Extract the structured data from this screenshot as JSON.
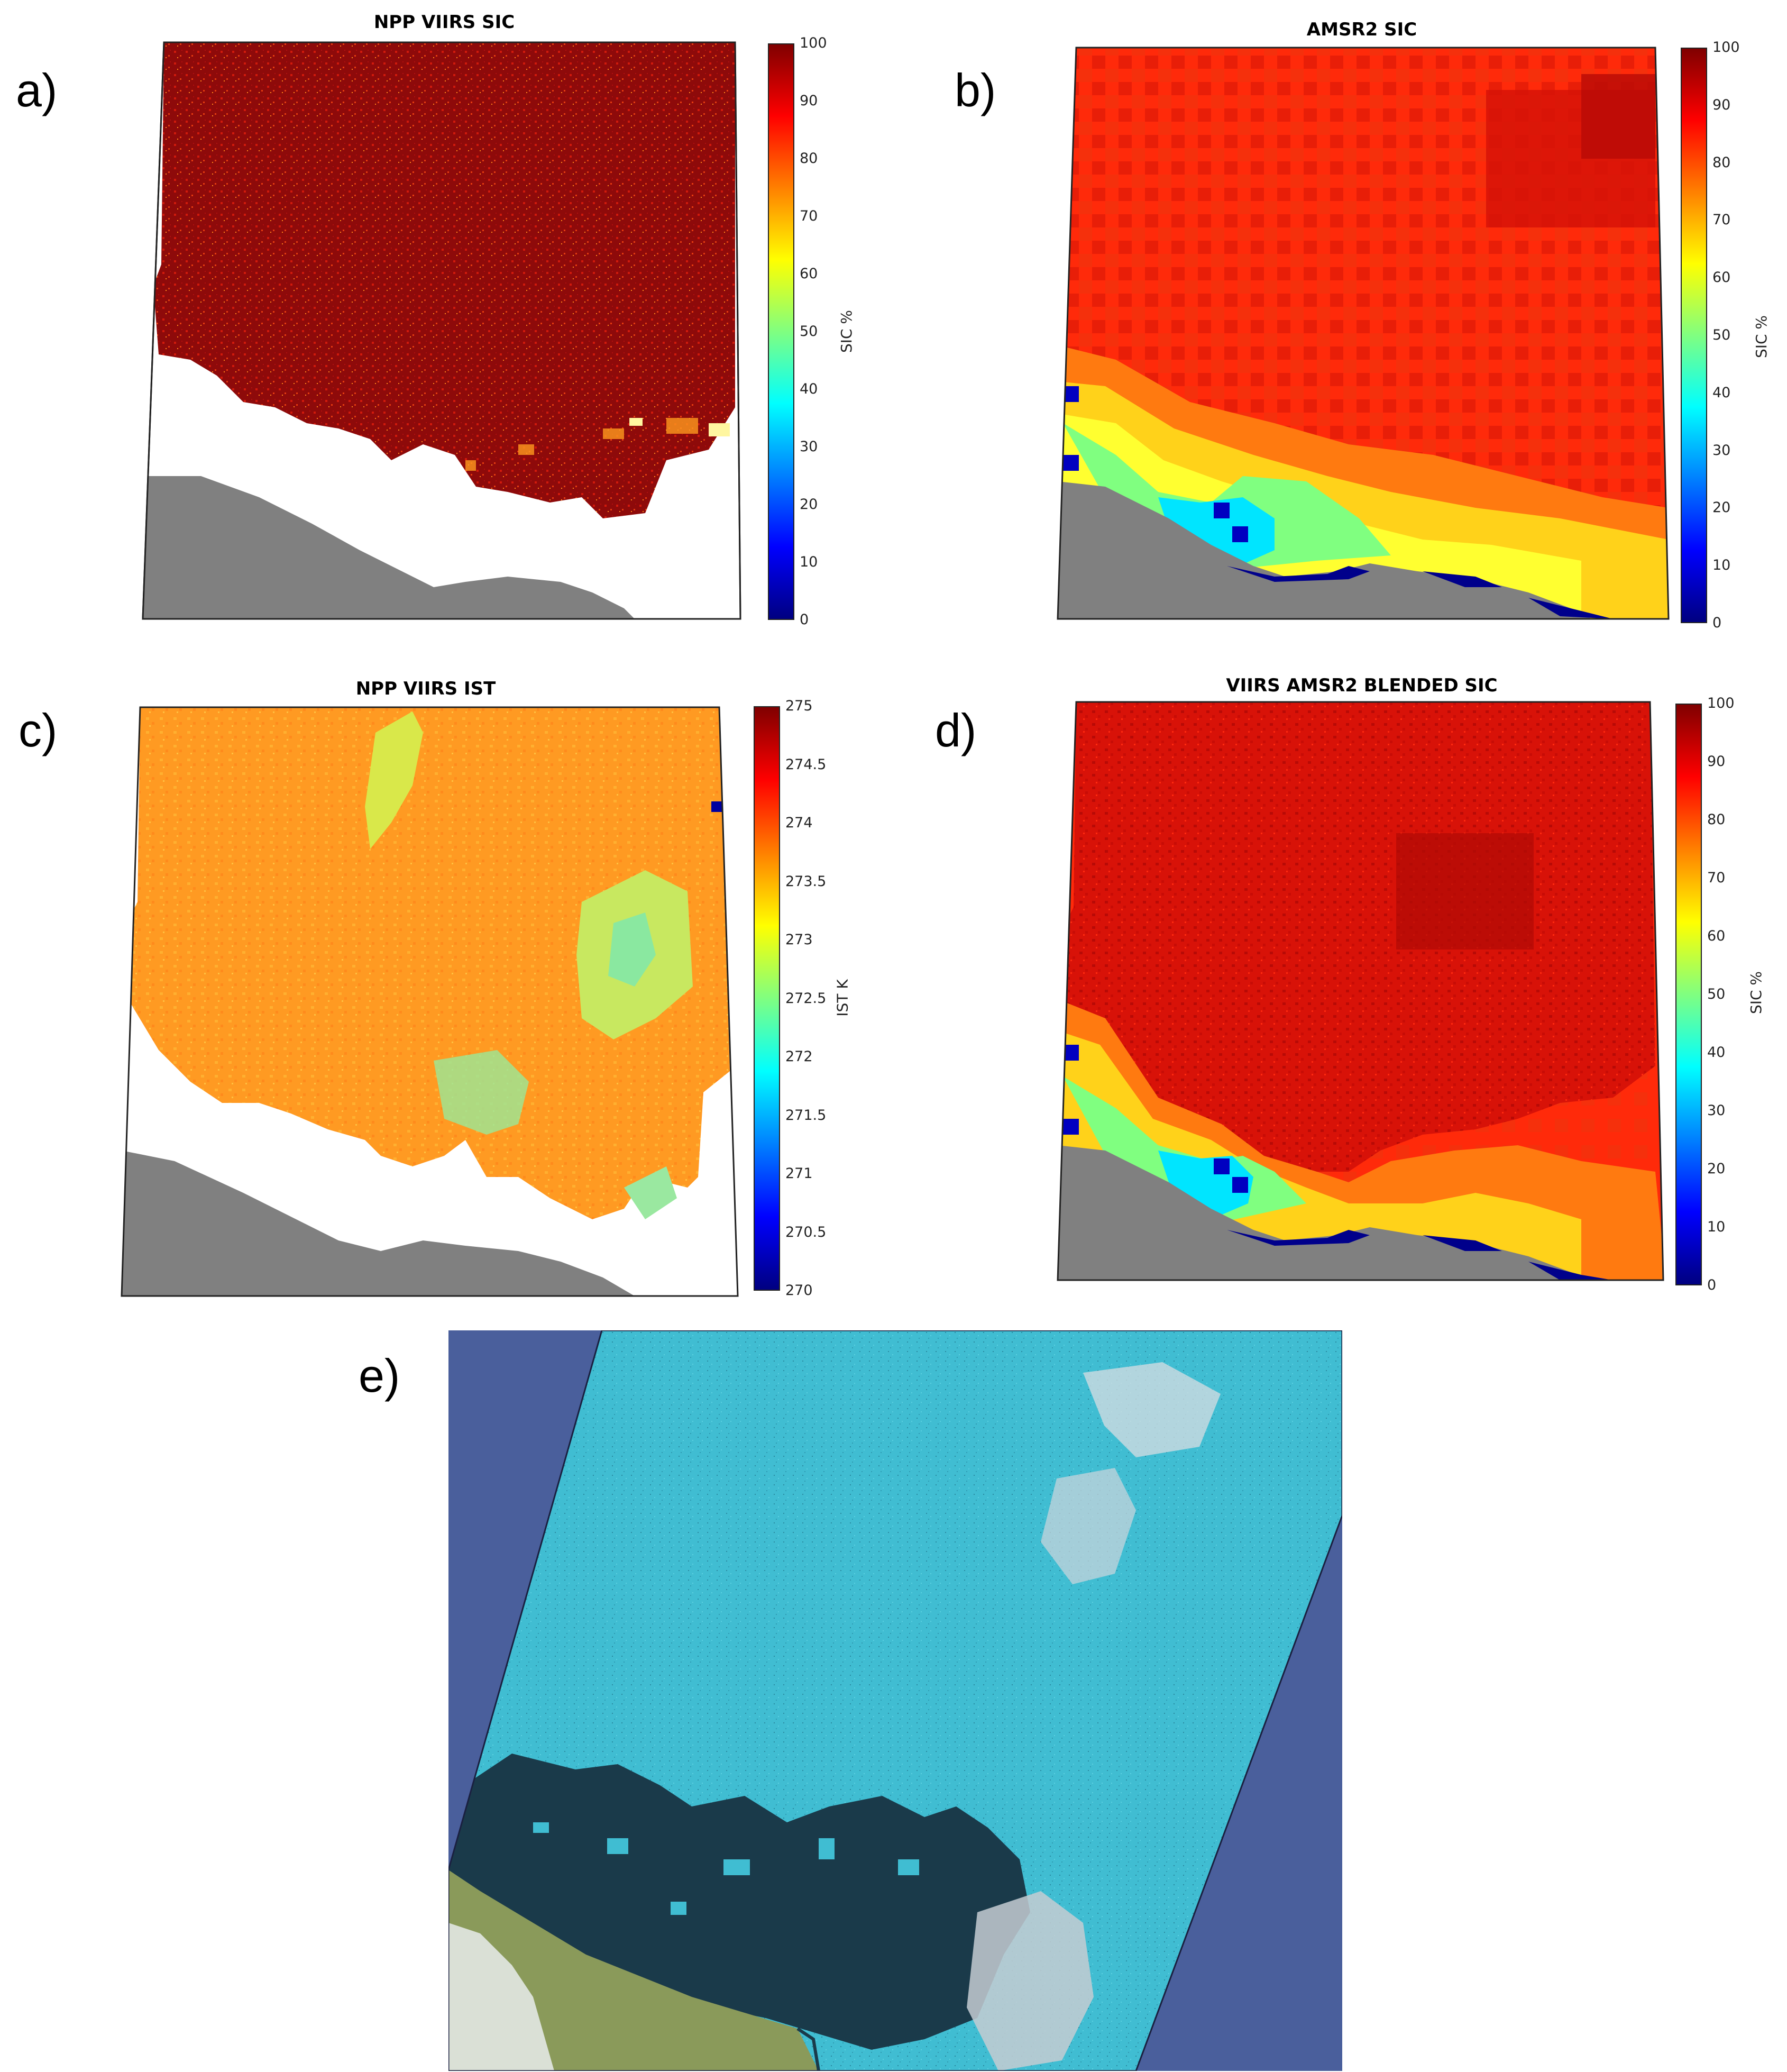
{
  "panels": [
    {
      "label": "a)",
      "title": "NPP VIIRS SIC",
      "unit": "SIC %",
      "ticks": [
        "100",
        "90",
        "80",
        "70",
        "60",
        "50",
        "40",
        "30",
        "20",
        "10",
        "0"
      ]
    },
    {
      "label": "b)",
      "title": "AMSR2 SIC",
      "unit": "SIC %",
      "ticks": [
        "100",
        "90",
        "80",
        "70",
        "60",
        "50",
        "40",
        "30",
        "20",
        "10",
        "0"
      ]
    },
    {
      "label": "c)",
      "title": "NPP VIIRS IST",
      "unit": "IST K",
      "ticks": [
        "275",
        "274.5",
        "274",
        "273.5",
        "273",
        "272.5",
        "272",
        "271.5",
        "271",
        "270.5",
        "270"
      ]
    },
    {
      "label": "d)",
      "title": "VIIRS AMSR2 BLENDED SIC",
      "unit": "SIC %",
      "ticks": [
        "100",
        "90",
        "80",
        "70",
        "60",
        "50",
        "40",
        "30",
        "20",
        "10",
        "0"
      ]
    },
    {
      "label": "e)"
    }
  ],
  "colors": {
    "colormap": "jet",
    "land": "#808080",
    "ice_dark_red": "#8b0000",
    "satellite_ice": "#3fb8cc",
    "satellite_background": "#4a5f9c"
  }
}
